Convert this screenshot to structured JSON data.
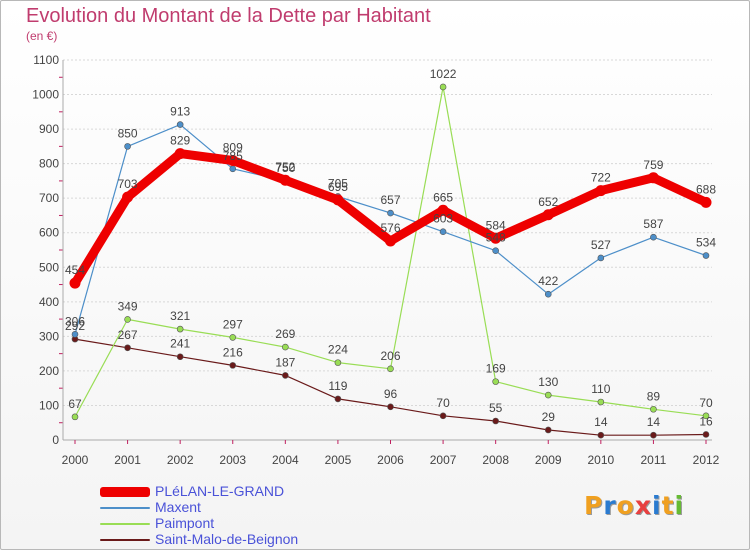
{
  "header": {
    "title": "Evolution du Montant de la Dette par Habitant",
    "unit": "(en €)"
  },
  "logo": {
    "text": "Proxiti",
    "colors": [
      "#f0a020",
      "#2a7bd0",
      "#f0a020",
      "#e84040",
      "#2a7bd0",
      "#f0a020",
      "#66bb33"
    ]
  },
  "chart_data": {
    "type": "line",
    "title": "Evolution du Montant de la Dette par Habitant",
    "subtitle": "(en €)",
    "xlabel": "",
    "ylabel": "",
    "x": [
      "2000",
      "2001",
      "2002",
      "2003",
      "2004",
      "2005",
      "2006",
      "2007",
      "2008",
      "2009",
      "2010",
      "2011",
      "2012"
    ],
    "ylim": [
      0,
      1100
    ],
    "yticks": [
      0,
      100,
      200,
      300,
      400,
      500,
      600,
      700,
      800,
      900,
      1000,
      1100
    ],
    "grid": "horizontal",
    "legend_position": "bottom-left",
    "series": [
      {
        "name": "PLéLAN-LE-GRAND",
        "color": "#ee0000",
        "values": [
          454,
          703,
          829,
          809,
          752,
          695,
          576,
          665,
          584,
          652,
          722,
          759,
          688
        ]
      },
      {
        "name": "Maxent",
        "color": "#4d8fc9",
        "values": [
          306,
          850,
          913,
          785,
          750,
          705,
          657,
          603,
          548,
          422,
          527,
          587,
          534
        ]
      },
      {
        "name": "Paimpont",
        "color": "#99dd55",
        "values": [
          67,
          349,
          321,
          297,
          269,
          224,
          206,
          1022,
          169,
          130,
          110,
          89,
          70
        ]
      },
      {
        "name": "Saint-Malo-de-Beignon",
        "color": "#6a1a1a",
        "values": [
          292,
          267,
          241,
          216,
          187,
          119,
          96,
          70,
          55,
          29,
          14,
          14,
          16
        ]
      }
    ]
  }
}
